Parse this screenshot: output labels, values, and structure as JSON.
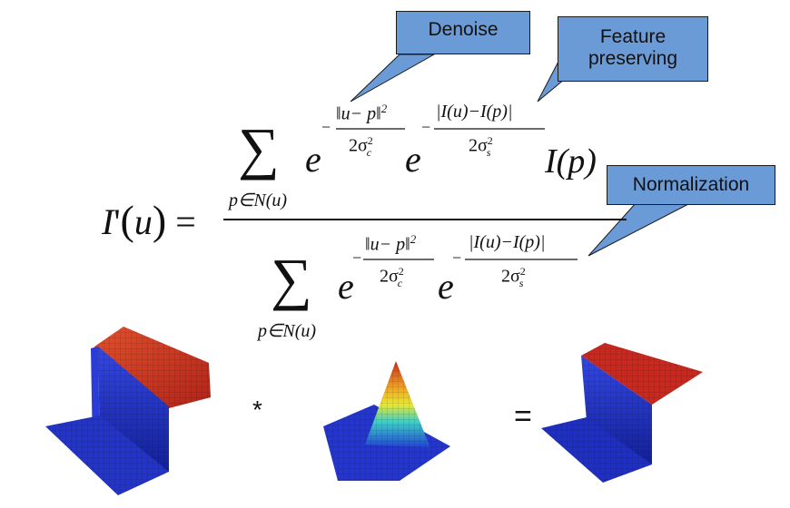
{
  "callouts": {
    "denoise": "Denoise",
    "feature_line1": "Feature",
    "feature_line2": "preserving",
    "normalization": "Normalization"
  },
  "formula": {
    "lhs_fn": "I",
    "lhs_prime": "'",
    "lhs_var": "u",
    "equals": "=",
    "sum_symbol": "∑",
    "sum_index": "p∈N(u)",
    "exp_base": "e",
    "minus": "−",
    "spatial_num": "‖u− p‖",
    "sq": "2",
    "spatial_den": "2σ",
    "spatial_sub": "c",
    "range_num": "|I(u)−I(p)|",
    "range_den": "2σ",
    "range_sub": "s",
    "num_tail": "I(p)"
  },
  "operators": {
    "convolve": "*",
    "equals": "="
  },
  "colors": {
    "callout_fill": "#6b9bd6",
    "surface_low": "#1a2fc9",
    "surface_high": "#d8342a"
  }
}
